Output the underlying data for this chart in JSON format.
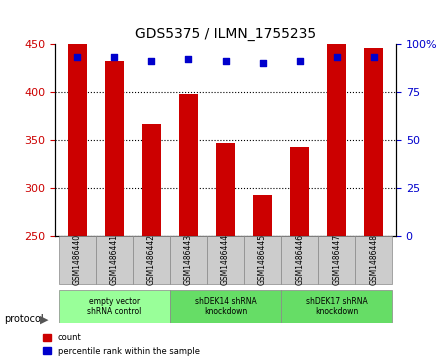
{
  "title": "GDS5375 / ILMN_1755235",
  "samples": [
    "GSM1486440",
    "GSM1486441",
    "GSM1486442",
    "GSM1486443",
    "GSM1486444",
    "GSM1486445",
    "GSM1486446",
    "GSM1486447",
    "GSM1486448"
  ],
  "counts": [
    452,
    432,
    366,
    397,
    346,
    292,
    342,
    452,
    445
  ],
  "percentiles": [
    93,
    93,
    91,
    92,
    91,
    90,
    91,
    93,
    93
  ],
  "ylim_left": [
    250,
    450
  ],
  "yticks_left": [
    250,
    300,
    350,
    400,
    450
  ],
  "ylim_right": [
    0,
    100
  ],
  "yticks_right": [
    0,
    25,
    50,
    75,
    100
  ],
  "bar_color": "#cc0000",
  "dot_color": "#0000cc",
  "bar_width": 0.5,
  "protocols": [
    {
      "label": "empty vector\nshRNA control",
      "start": 0,
      "end": 3,
      "color": "#99ff99"
    },
    {
      "label": "shDEK14 shRNA\nknockdown",
      "start": 3,
      "end": 6,
      "color": "#66dd66"
    },
    {
      "label": "shDEK17 shRNA\nknockdown",
      "start": 6,
      "end": 9,
      "color": "#66dd66"
    }
  ],
  "legend_items": [
    {
      "label": "count",
      "color": "#cc0000",
      "marker": "s"
    },
    {
      "label": "percentile rank within the sample",
      "color": "#0000cc",
      "marker": "s"
    }
  ],
  "tick_label_color_left": "#cc0000",
  "tick_label_color_right": "#0000cc",
  "grid_color": "#000000",
  "grid_linestyle": "dotted",
  "background_plot": "#ffffff",
  "background_xlabel": "#cccccc"
}
